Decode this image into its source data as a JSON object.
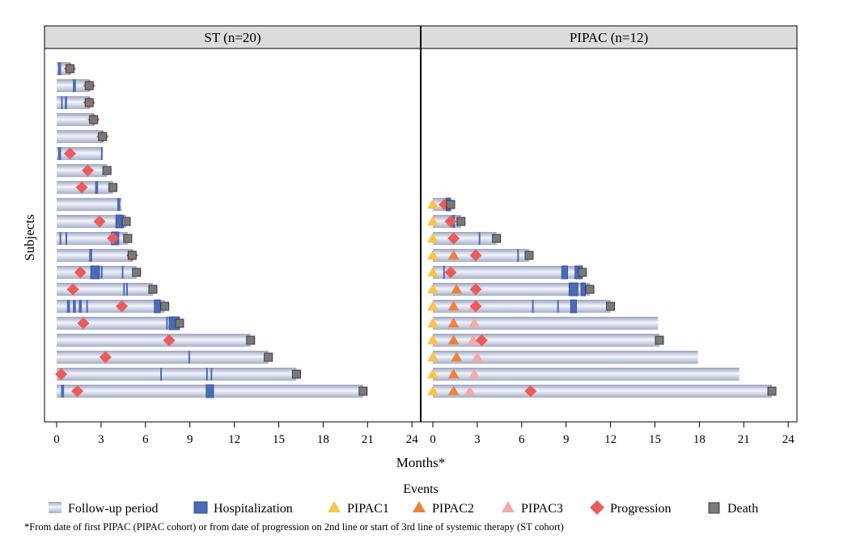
{
  "chart_data": [
    {
      "type": "swimmer",
      "title": "ST (n=20)",
      "xlabel": "Months*",
      "ylabel": "Subjects",
      "xlim": [
        0,
        24
      ],
      "xticks": [
        0,
        3,
        6,
        9,
        12,
        15,
        18,
        21,
        24
      ],
      "xtick_labels": [
        "0",
        "3",
        "6",
        "9",
        "12",
        "15",
        "18",
        "21",
        "24"
      ],
      "subjects": [
        {
          "id": 1,
          "follow_up": 0.9,
          "hosp": [
            [
              0.1,
              0.3
            ]
          ],
          "progression": [
            0.9
          ],
          "death": 0.9,
          "pipac1": [],
          "pipac2": [],
          "pipac3": []
        },
        {
          "id": 2,
          "follow_up": 2.2,
          "hosp": [
            [
              1.1,
              1.3
            ]
          ],
          "progression": [
            2.2
          ],
          "death": 2.2,
          "pipac1": [],
          "pipac2": [],
          "pipac3": []
        },
        {
          "id": 3,
          "follow_up": 2.2,
          "hosp": [
            [
              0.3,
              0.4
            ],
            [
              0.55,
              0.7
            ]
          ],
          "progression": [
            2.2
          ],
          "death": 2.2,
          "pipac1": [],
          "pipac2": [],
          "pipac3": []
        },
        {
          "id": 4,
          "follow_up": 2.5,
          "hosp": [],
          "progression": [
            2.5
          ],
          "death": 2.5,
          "pipac1": [],
          "pipac2": [],
          "pipac3": []
        },
        {
          "id": 5,
          "follow_up": 3.1,
          "hosp": [],
          "progression": [
            3.1
          ],
          "death": 3.1,
          "pipac1": [],
          "pipac2": [],
          "pipac3": []
        },
        {
          "id": 6,
          "follow_up": 3.1,
          "hosp": [
            [
              0.1,
              0.3
            ],
            [
              3.0,
              3.1
            ]
          ],
          "progression": [
            0.9
          ],
          "death": null,
          "pipac1": [],
          "pipac2": [],
          "pipac3": []
        },
        {
          "id": 7,
          "follow_up": 3.4,
          "hosp": [],
          "progression": [
            2.1
          ],
          "death": 3.4,
          "pipac1": [],
          "pipac2": [],
          "pipac3": []
        },
        {
          "id": 8,
          "follow_up": 3.8,
          "hosp": [
            [
              2.6,
              2.8
            ]
          ],
          "progression": [
            1.7
          ],
          "death": 3.8,
          "pipac1": [],
          "pipac2": [],
          "pipac3": []
        },
        {
          "id": 9,
          "follow_up": 4.4,
          "hosp": [
            [
              4.1,
              4.3
            ]
          ],
          "progression": [],
          "death": null,
          "pipac1": [],
          "pipac2": [],
          "pipac3": []
        },
        {
          "id": 10,
          "follow_up": 4.7,
          "hosp": [
            [
              4.0,
              4.5
            ]
          ],
          "progression": [
            2.9
          ],
          "death": 4.7,
          "pipac1": [],
          "pipac2": [],
          "pipac3": []
        },
        {
          "id": 11,
          "follow_up": 4.8,
          "hosp": [
            [
              0.2,
              0.3
            ],
            [
              0.6,
              0.7
            ],
            [
              3.7,
              4.2
            ]
          ],
          "progression": [
            3.8
          ],
          "death": 4.8,
          "pipac1": [],
          "pipac2": [],
          "pipac3": []
        },
        {
          "id": 12,
          "follow_up": 5.1,
          "hosp": [
            [
              2.2,
              2.4
            ]
          ],
          "progression": [
            5.1
          ],
          "death": 5.1,
          "pipac1": [],
          "pipac2": [],
          "pipac3": []
        },
        {
          "id": 13,
          "follow_up": 5.4,
          "hosp": [
            [
              2.3,
              2.9
            ],
            [
              3.0,
              3.1
            ],
            [
              4.4,
              4.5
            ]
          ],
          "progression": [
            1.6
          ],
          "death": 5.4,
          "pipac1": [],
          "pipac2": [],
          "pipac3": []
        },
        {
          "id": 14,
          "follow_up": 6.5,
          "hosp": [
            [
              4.5,
              4.6
            ],
            [
              4.7,
              4.8
            ]
          ],
          "progression": [
            1.1
          ],
          "death": 6.5,
          "pipac1": [],
          "pipac2": [],
          "pipac3": []
        },
        {
          "id": 15,
          "follow_up": 7.3,
          "hosp": [
            [
              0.7,
              0.9
            ],
            [
              1.1,
              1.3
            ],
            [
              1.5,
              1.7
            ],
            [
              2.0,
              2.1
            ],
            [
              6.6,
              7.0
            ]
          ],
          "progression": [
            4.4
          ],
          "death": 7.3,
          "pipac1": [],
          "pipac2": [],
          "pipac3": []
        },
        {
          "id": 16,
          "follow_up": 8.3,
          "hosp": [
            [
              7.4,
              7.5
            ],
            [
              7.6,
              8.3
            ]
          ],
          "progression": [
            1.8
          ],
          "death": 8.3,
          "pipac1": [],
          "pipac2": [],
          "pipac3": []
        },
        {
          "id": 17,
          "follow_up": 13.1,
          "hosp": [],
          "progression": [
            7.6
          ],
          "death": 13.1,
          "pipac1": [],
          "pipac2": [],
          "pipac3": []
        },
        {
          "id": 18,
          "follow_up": 14.3,
          "hosp": [
            [
              8.9,
              9.0
            ]
          ],
          "progression": [
            3.3
          ],
          "death": 14.3,
          "pipac1": [],
          "pipac2": [],
          "pipac3": []
        },
        {
          "id": 19,
          "follow_up": 16.2,
          "hosp": [
            [
              7.0,
              7.1
            ],
            [
              10.1,
              10.2
            ],
            [
              10.4,
              10.5
            ]
          ],
          "progression": [
            0.3
          ],
          "death": 16.2,
          "pipac1": [],
          "pipac2": [],
          "pipac3": []
        },
        {
          "id": 20,
          "follow_up": 20.7,
          "hosp": [
            [
              0.3,
              0.5
            ],
            [
              10.1,
              10.6
            ]
          ],
          "progression": [
            1.4
          ],
          "death": 20.7,
          "pipac1": [],
          "pipac2": [],
          "pipac3": []
        }
      ]
    },
    {
      "type": "swimmer",
      "title": "PIPAC (n=12)",
      "xlabel": "Months*",
      "ylabel": "Subjects",
      "xlim": [
        0,
        24
      ],
      "xticks": [
        0,
        3,
        6,
        9,
        12,
        15,
        18,
        21,
        24
      ],
      "xtick_labels": [
        "0",
        "3",
        "6",
        "9",
        "12",
        "15",
        "18",
        "21",
        "24"
      ],
      "subjects": [
        {
          "id": 1,
          "follow_up": 1.2,
          "hosp": [
            [
              0.9,
              1.2
            ]
          ],
          "progression": [
            0.8
          ],
          "death": 1.2,
          "pipac1": [
            0
          ],
          "pipac2": [],
          "pipac3": []
        },
        {
          "id": 2,
          "follow_up": 1.9,
          "hosp": [
            [
              1.3,
              1.5
            ]
          ],
          "progression": [
            1.2
          ],
          "death": 1.9,
          "pipac1": [
            0
          ],
          "pipac2": [],
          "pipac3": []
        },
        {
          "id": 3,
          "follow_up": 4.3,
          "hosp": [
            [
              3.1,
              3.2
            ]
          ],
          "progression": [
            1.4
          ],
          "death": 4.3,
          "pipac1": [
            0
          ],
          "pipac2": [],
          "pipac3": []
        },
        {
          "id": 4,
          "follow_up": 6.5,
          "hosp": [
            [
              5.7,
              5.8
            ]
          ],
          "progression": [
            2.9
          ],
          "death": 6.5,
          "pipac1": [
            0
          ],
          "pipac2": [
            1.4
          ],
          "pipac3": []
        },
        {
          "id": 5,
          "follow_up": 10.1,
          "hosp": [
            [
              0.7,
              0.8
            ],
            [
              8.7,
              9.1
            ],
            [
              9.6,
              10.1
            ]
          ],
          "progression": [
            1.2
          ],
          "death": 10.1,
          "pipac1": [
            0
          ],
          "pipac2": [],
          "pipac3": []
        },
        {
          "id": 6,
          "follow_up": 10.6,
          "hosp": [
            [
              9.2,
              9.8
            ],
            [
              10.0,
              10.3
            ]
          ],
          "progression": [
            2.9
          ],
          "death": 10.6,
          "pipac1": [
            0
          ],
          "pipac2": [
            1.6
          ],
          "pipac3": []
        },
        {
          "id": 7,
          "follow_up": 12.0,
          "hosp": [
            [
              6.7,
              6.8
            ],
            [
              8.4,
              8.5
            ],
            [
              9.3,
              9.7
            ]
          ],
          "progression": [
            2.9
          ],
          "death": 12.0,
          "pipac1": [
            0
          ],
          "pipac2": [
            1.4
          ],
          "pipac3": [
            2.8
          ]
        },
        {
          "id": 8,
          "follow_up": 15.2,
          "hosp": [],
          "progression": [],
          "death": null,
          "pipac1": [
            0
          ],
          "pipac2": [
            1.4
          ],
          "pipac3": [
            2.8
          ]
        },
        {
          "id": 9,
          "follow_up": 15.3,
          "hosp": [],
          "progression": [
            3.3
          ],
          "death": 15.3,
          "pipac1": [
            0
          ],
          "pipac2": [
            1.4
          ],
          "pipac3": [
            2.7
          ]
        },
        {
          "id": 10,
          "follow_up": 17.9,
          "hosp": [],
          "progression": [],
          "death": null,
          "pipac1": [
            0
          ],
          "pipac2": [
            1.6
          ],
          "pipac3": [
            3.0
          ]
        },
        {
          "id": 11,
          "follow_up": 20.7,
          "hosp": [],
          "progression": [],
          "death": null,
          "pipac1": [
            0
          ],
          "pipac2": [
            1.4
          ],
          "pipac3": [
            2.8
          ]
        },
        {
          "id": 12,
          "follow_up": 22.9,
          "hosp": [],
          "progression": [
            6.6
          ],
          "death": 22.9,
          "pipac1": [
            0
          ],
          "pipac2": [
            1.4
          ],
          "pipac3": [
            2.5
          ]
        }
      ]
    }
  ],
  "legend": {
    "title": "Events",
    "placement": "bottom",
    "items": [
      {
        "key": "followup",
        "label": "Follow-up period"
      },
      {
        "key": "hosp",
        "label": "Hospitalization"
      },
      {
        "key": "pipac1",
        "label": "PIPAC1"
      },
      {
        "key": "pipac2",
        "label": "PIPAC2"
      },
      {
        "key": "pipac3",
        "label": "PIPAC3"
      },
      {
        "key": "progression",
        "label": "Progression"
      },
      {
        "key": "death",
        "label": "Death"
      }
    ]
  },
  "colors": {
    "hosp": "#4a6bb8",
    "hosp_stroke": "#2c4a8c",
    "pipac1": "#f7c54a",
    "pipac2": "#ee8140",
    "pipac3": "#f4aaa9",
    "progression": "#ea5c5c",
    "death": "#7a7a7a",
    "death_stroke": "#3a3a3a",
    "strip_bg": "#dcdcdc",
    "bar_light": "#eef0f8",
    "bar_mid": "#c5cbe0"
  },
  "footnote": "*From date of first PIPAC (PIPAC cohort) or from date of progression on 2nd line or start of 3rd line of systemic therapy (ST cohort)"
}
